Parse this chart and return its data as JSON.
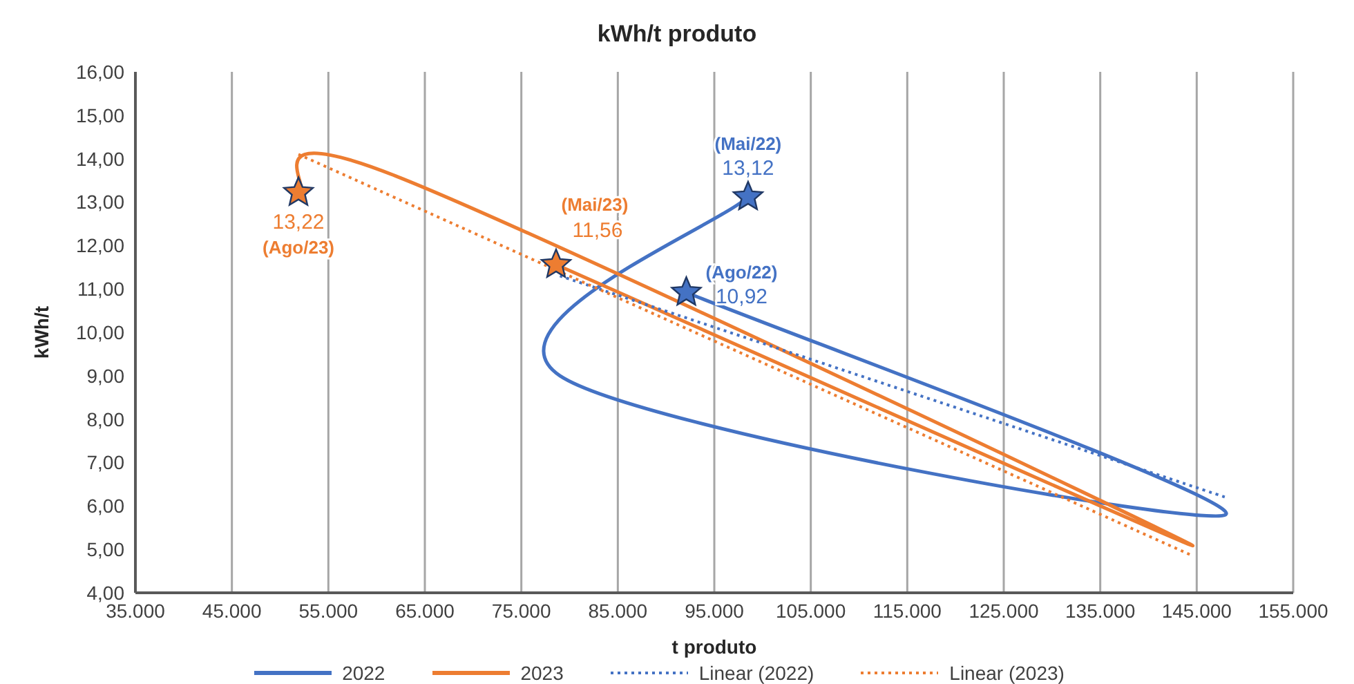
{
  "chart_data": {
    "type": "line",
    "title": "kWh/t produto",
    "xlabel": "t produto",
    "ylabel": "kWh/t",
    "series": [
      {
        "name": "2022",
        "color": "#4472c4",
        "x": [
          98500,
          79000,
          148000,
          92100
        ],
        "values": [
          13.12,
          9.0,
          5.8,
          10.92
        ],
        "marker": "star",
        "value_labels": [
          "13,12",
          null,
          null,
          "10,92"
        ]
      },
      {
        "name": "2023",
        "color": "#ed7d31",
        "x": [
          78600,
          144500,
          62000,
          51900
        ],
        "values": [
          11.56,
          5.1,
          13.6,
          13.22
        ],
        "marker": "star",
        "value_labels": [
          "11,56",
          null,
          null,
          "13,22"
        ]
      },
      {
        "name": "Linear (2022)",
        "color": "#4472c4",
        "type": "line",
        "line_style": "dotted",
        "x": [
          79000,
          148000
        ],
        "values": [
          11.3,
          6.2
        ]
      },
      {
        "name": "Linear (2023)",
        "color": "#ed7d31",
        "type": "line",
        "line_style": "dotted",
        "x": [
          51900,
          144500
        ],
        "values": [
          14.1,
          4.86
        ]
      }
    ],
    "annotations": [
      {
        "text": "(Mai/22)",
        "x": 98500,
        "y": 13.12
      },
      {
        "text": "(Ago/22)",
        "x": 92100,
        "y": 10.92
      },
      {
        "text": "(Mai/23)",
        "x": 78600,
        "y": 11.56
      },
      {
        "text": "(Ago/23)",
        "x": 51900,
        "y": 13.22
      }
    ],
    "xlim": [
      35000,
      155000
    ],
    "xticks": [
      {
        "value": 35000,
        "label": "35.000"
      },
      {
        "value": 45000,
        "label": "45.000"
      },
      {
        "value": 55000,
        "label": "55.000"
      },
      {
        "value": 65000,
        "label": "65.000"
      },
      {
        "value": 75000,
        "label": "75.000"
      },
      {
        "value": 85000,
        "label": "85.000"
      },
      {
        "value": 95000,
        "label": "95.000"
      },
      {
        "value": 105000,
        "label": "105.000"
      },
      {
        "value": 115000,
        "label": "115.000"
      },
      {
        "value": 125000,
        "label": "125.000"
      },
      {
        "value": 135000,
        "label": "135.000"
      },
      {
        "value": 145000,
        "label": "145.000"
      },
      {
        "value": 155000,
        "label": "155.000"
      }
    ],
    "ylim": [
      4,
      16
    ],
    "yticks": [
      {
        "value": 4,
        "label": "4,00"
      },
      {
        "value": 5,
        "label": "5,00"
      },
      {
        "value": 6,
        "label": "6,00"
      },
      {
        "value": 7,
        "label": "7,00"
      },
      {
        "value": 8,
        "label": "8,00"
      },
      {
        "value": 9,
        "label": "9,00"
      },
      {
        "value": 10,
        "label": "10,00"
      },
      {
        "value": 11,
        "label": "11,00"
      },
      {
        "value": 12,
        "label": "12,00"
      },
      {
        "value": 13,
        "label": "13,00"
      },
      {
        "value": 14,
        "label": "14,00"
      },
      {
        "value": 15,
        "label": "15,00"
      },
      {
        "value": 16,
        "label": "16,00"
      }
    ],
    "grid": "x",
    "legend": "bottom"
  }
}
